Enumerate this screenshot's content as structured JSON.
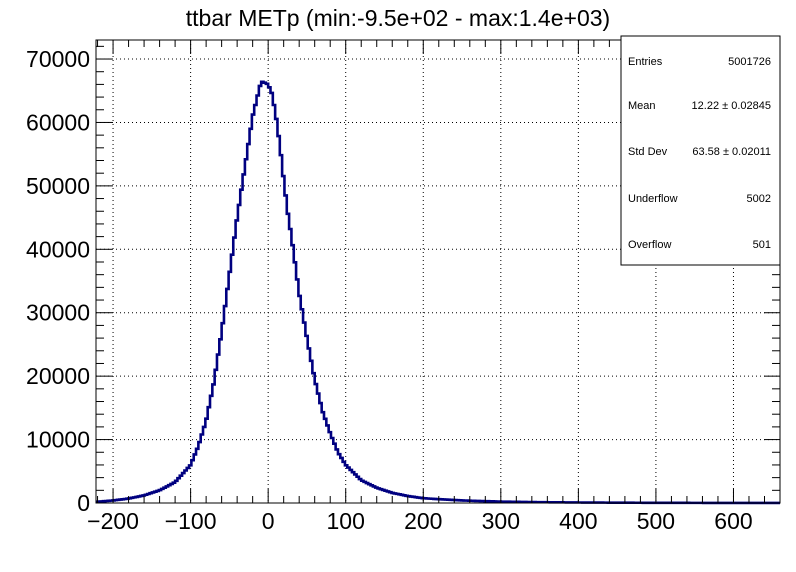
{
  "chart_data": {
    "type": "histogram",
    "title": "ttbar METp (min:-9.5e+02 - max:1.4e+03)",
    "xlabel": "",
    "ylabel": "",
    "xlim": [
      -222,
      660
    ],
    "ylim": [
      0,
      73000
    ],
    "x_ticks": [
      -200,
      -100,
      0,
      100,
      200,
      300,
      400,
      500,
      600
    ],
    "x_tick_labels": [
      "−200",
      "−100",
      "0",
      "100",
      "200",
      "300",
      "400",
      "500",
      "600"
    ],
    "y_ticks": [
      0,
      10000,
      20000,
      30000,
      40000,
      50000,
      60000,
      70000
    ],
    "y_tick_labels": [
      "0",
      "10000",
      "20000",
      "30000",
      "40000",
      "50000",
      "60000",
      "70000"
    ],
    "grid": true,
    "line_color": "#000080",
    "series": [
      {
        "x": [
          -220,
          -200,
          -180,
          -160,
          -140,
          -120,
          -100,
          -90,
          -80,
          -70,
          -60,
          -50,
          -40,
          -30,
          -25,
          -20,
          -15,
          -10,
          -7,
          -5,
          0,
          5,
          10,
          15,
          20,
          25,
          30,
          40,
          50,
          60,
          70,
          80,
          90,
          100,
          120,
          140,
          160,
          180,
          200,
          250,
          300,
          350,
          400,
          450,
          500,
          550,
          600,
          660
        ],
        "y": [
          200,
          400,
          700,
          1200,
          2000,
          3300,
          6000,
          9000,
          13000,
          19000,
          27000,
          36000,
          45000,
          53000,
          57000,
          61000,
          63500,
          66000,
          66500,
          66300,
          66000,
          64500,
          61000,
          56500,
          51000,
          46000,
          42000,
          33000,
          26000,
          19500,
          14500,
          11000,
          8000,
          6000,
          3600,
          2400,
          1600,
          1100,
          750,
          400,
          220,
          130,
          80,
          50,
          30,
          20,
          12,
          8
        ]
      }
    ],
    "legend": "top-right",
    "stats": {
      "entries_label": "Entries",
      "entries": "5001726",
      "mean_label": "Mean",
      "mean": "12.22 ± 0.02845",
      "stddev_label": "Std Dev",
      "stddev": "63.58 ± 0.02011",
      "underflow_label": "Underflow",
      "underflow": "5002",
      "overflow_label": "Overflow",
      "overflow": "501"
    }
  }
}
